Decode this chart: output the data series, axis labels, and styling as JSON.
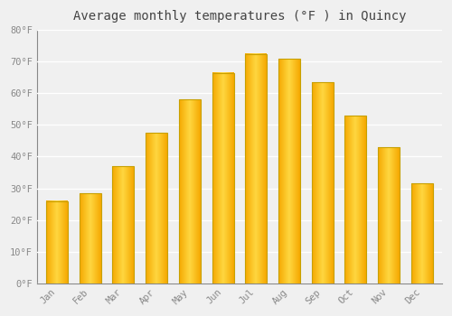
{
  "months": [
    "Jan",
    "Feb",
    "Mar",
    "Apr",
    "May",
    "Jun",
    "Jul",
    "Aug",
    "Sep",
    "Oct",
    "Nov",
    "Dec"
  ],
  "values": [
    26,
    28.5,
    37,
    47.5,
    58,
    66.5,
    72.5,
    71,
    63.5,
    53,
    43,
    31.5
  ],
  "title": "Average monthly temperatures (°F ) in Quincy",
  "bar_color_center": "#FFD740",
  "bar_color_edge": "#F5A800",
  "bar_border_color": "#C8A000",
  "ylim": [
    0,
    80
  ],
  "yticks": [
    0,
    10,
    20,
    30,
    40,
    50,
    60,
    70,
    80
  ],
  "ytick_labels": [
    "0°F",
    "10°F",
    "20°F",
    "30°F",
    "40°F",
    "50°F",
    "60°F",
    "70°F",
    "80°F"
  ],
  "background_color": "#f0f0f0",
  "plot_bg_color": "#f0f0f0",
  "grid_color": "#ffffff",
  "title_fontsize": 10,
  "tick_fontsize": 7.5,
  "bar_width": 0.65,
  "bar_linewidth": 0.8
}
